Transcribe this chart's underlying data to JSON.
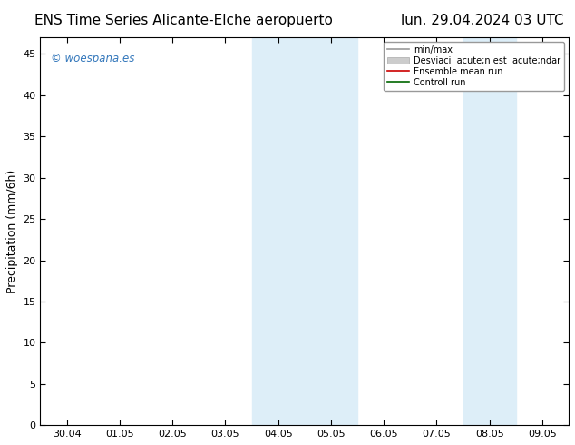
{
  "title_left": "ENS Time Series Alicante-Elche aeropuerto",
  "title_right": "lun. 29.04.2024 03 UTC",
  "ylabel": "Precipitation (mm/6h)",
  "ylim": [
    0,
    47
  ],
  "yticks": [
    0,
    5,
    10,
    15,
    20,
    25,
    30,
    35,
    40,
    45
  ],
  "x_labels": [
    "30.04",
    "01.05",
    "02.05",
    "03.05",
    "04.05",
    "05.05",
    "06.05",
    "07.05",
    "08.05",
    "09.05"
  ],
  "x_positions": [
    0,
    1,
    2,
    3,
    4,
    5,
    6,
    7,
    8,
    9
  ],
  "shade_bands": [
    {
      "xmin": 3.5,
      "xmax": 4.5,
      "color": "#ddeef8"
    },
    {
      "xmin": 4.5,
      "xmax": 5.5,
      "color": "#ddeef8"
    },
    {
      "xmin": 7.5,
      "xmax": 8.5,
      "color": "#ddeef8"
    }
  ],
  "background_color": "#ffffff",
  "plot_bg_color": "#ffffff",
  "grid_color": "#cccccc",
  "watermark_text": "© woespana.es",
  "watermark_color": "#3377bb",
  "title_fontsize": 11,
  "axis_label_fontsize": 9,
  "tick_fontsize": 8,
  "legend_minmax_color": "#999999",
  "legend_std_color": "#cccccc",
  "legend_ensemble_color": "#cc0000",
  "legend_control_color": "#006600",
  "legend_label_minmax": "min/max",
  "legend_label_std": "Desviaci  acute;n est  acute;ndar",
  "legend_label_ensemble": "Ensemble mean run",
  "legend_label_control": "Controll run"
}
